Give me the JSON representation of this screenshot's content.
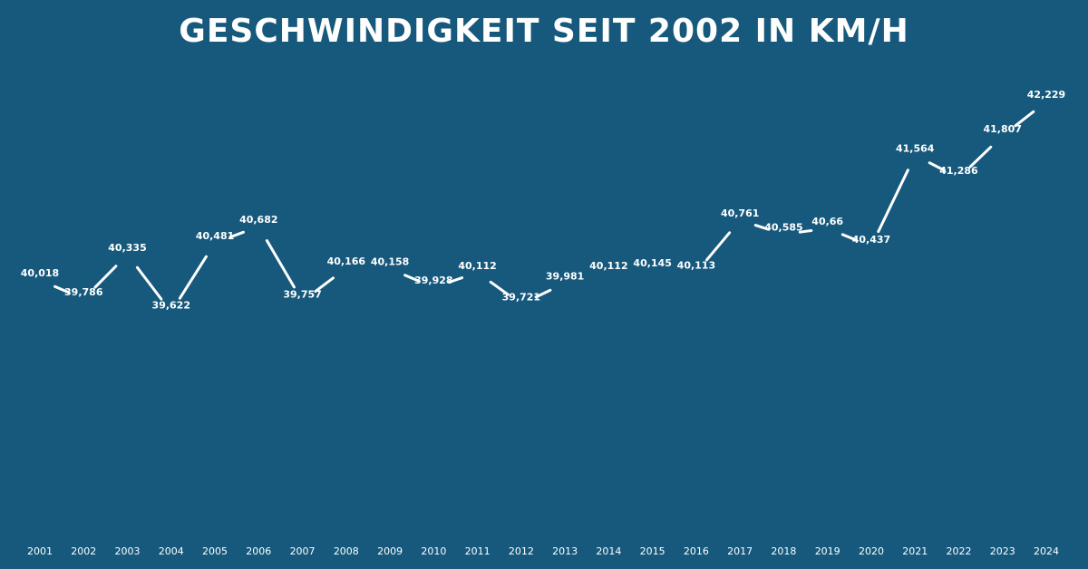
{
  "chart_data": {
    "type": "line",
    "title": "GESCHWINDIGKEIT SEIT 2002 IN KM/H",
    "xlabel": "",
    "ylabel": "",
    "ylim": [
      37,
      42.4
    ],
    "grid": false,
    "x": [
      "2001",
      "2002",
      "2003",
      "2004",
      "2005",
      "2006",
      "2007",
      "2008",
      "2009",
      "2010",
      "2011",
      "2012",
      "2013",
      "2014",
      "2015",
      "2016",
      "2017",
      "2018",
      "2019",
      "2020",
      "2021",
      "2022",
      "2023",
      "2024"
    ],
    "values": [
      40.018,
      39.786,
      40.335,
      39.622,
      40.481,
      40.682,
      39.757,
      40.166,
      40.158,
      39.928,
      40.112,
      39.721,
      39.981,
      40.112,
      40.145,
      40.113,
      40.761,
      40.585,
      40.66,
      40.437,
      41.564,
      41.286,
      41.807,
      42.229
    ],
    "value_labels": [
      "40,018",
      "39,786",
      "40,335",
      "39,622",
      "40,481",
      "40,682",
      "39,757",
      "40,166",
      "40,158",
      "39,928",
      "40,112",
      "39,721",
      "39,981",
      "40,112",
      "40,145",
      "40,113",
      "40,761",
      "40,585",
      "40,66",
      "40,437",
      "41,564",
      "41,286",
      "41,807",
      "42,229"
    ],
    "connected": [
      true,
      true,
      true,
      true,
      true,
      true,
      true,
      false,
      true,
      true,
      true,
      true,
      false,
      false,
      false,
      true,
      true,
      true,
      true,
      true,
      true,
      true,
      true
    ]
  }
}
